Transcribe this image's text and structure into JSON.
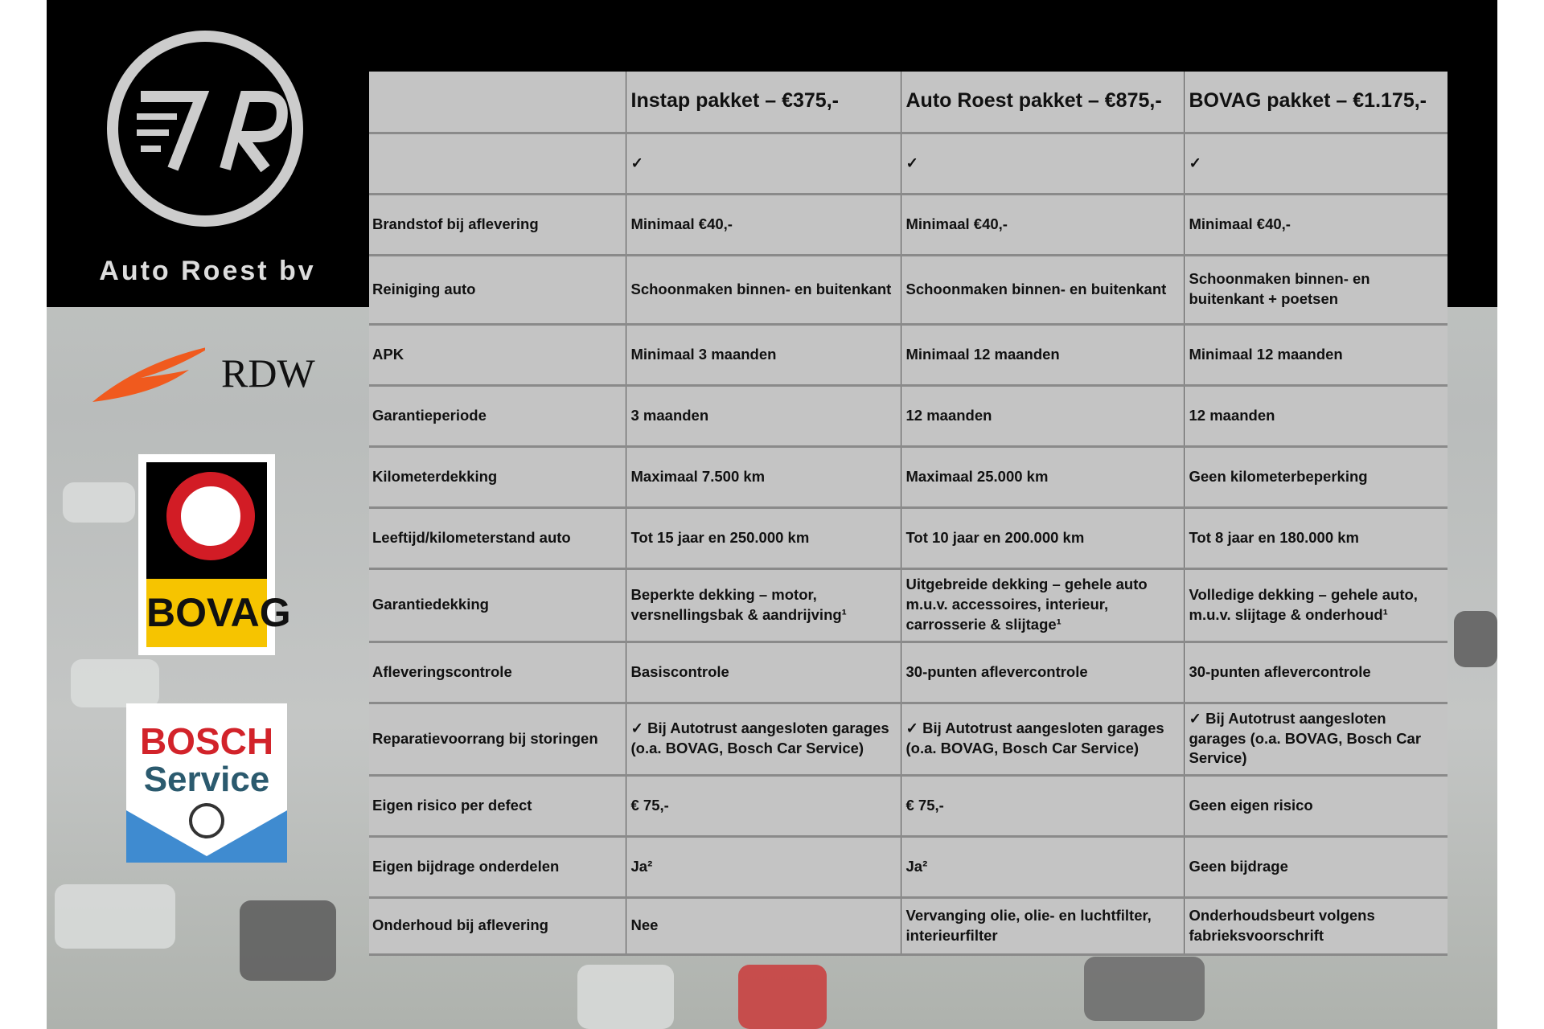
{
  "brand": {
    "name": "Auto Roest bv",
    "logo_text": "7R"
  },
  "partners": [
    {
      "name": "RDW"
    },
    {
      "name": "BOVAG"
    },
    {
      "name": "BOSCH",
      "sub": "Service"
    }
  ],
  "table": {
    "headers": [
      "",
      "Instap pakket – €375,-",
      "Auto Roest pakket – €875,-",
      "BOVAG pakket – €1.175,-"
    ],
    "rows": [
      {
        "label": "",
        "cells": [
          "✓",
          "✓",
          "✓"
        ]
      },
      {
        "label": "Brandstof bij aflevering",
        "cells": [
          "Minimaal €40,-",
          "Minimaal €40,-",
          "Minimaal €40,-"
        ]
      },
      {
        "label": "Reiniging auto",
        "cells": [
          "Schoonmaken binnen- en buitenkant",
          "Schoonmaken binnen- en buitenkant",
          "Schoonmaken binnen- en buitenkant + poetsen"
        ]
      },
      {
        "label": "APK",
        "cells": [
          "Minimaal 3 maanden",
          "Minimaal 12 maanden",
          "Minimaal 12 maanden"
        ]
      },
      {
        "label": "Garantieperiode",
        "cells": [
          "3 maanden",
          "12 maanden",
          "12 maanden"
        ]
      },
      {
        "label": "Kilometerdekking",
        "cells": [
          "Maximaal 7.500 km",
          "Maximaal 25.000 km",
          "Geen kilometerbeperking"
        ]
      },
      {
        "label": "Leeftijd/kilometerstand auto",
        "cells": [
          "Tot 15 jaar en 250.000 km",
          "Tot 10 jaar en 200.000 km",
          "Tot 8 jaar en 180.000 km"
        ]
      },
      {
        "label": "Garantiedekking",
        "cells": [
          "Beperkte dekking – motor, versnellingsbak & aandrijving¹",
          "Uitgebreide dekking – gehele auto m.u.v. accessoires, interieur, carrosserie & slijtage¹",
          "Volledige dekking – gehele auto, m.u.v. slijtage & onderhoud¹"
        ]
      },
      {
        "label": "Afleveringscontrole",
        "cells": [
          "Basiscontrole",
          "30-punten aflevercontrole",
          "30-punten aflevercontrole"
        ]
      },
      {
        "label": "Reparatievoorrang bij storingen",
        "cells": [
          "✓ Bij Autotrust aangesloten garages (o.a. BOVAG, Bosch Car Service)",
          "✓ Bij Autotrust aangesloten garages (o.a. BOVAG, Bosch Car Service)",
          "✓ Bij Autotrust aangesloten garages (o.a. BOVAG, Bosch Car Service)"
        ]
      },
      {
        "label": "Eigen risico per defect",
        "cells": [
          "€ 75,-",
          "€ 75,-",
          "Geen eigen risico"
        ]
      },
      {
        "label": "Eigen bijdrage onderdelen",
        "cells": [
          "Ja²",
          "Ja²",
          "Geen bijdrage"
        ]
      },
      {
        "label": "Onderhoud bij aflevering",
        "cells": [
          "Nee",
          "Vervanging olie, olie- en luchtfilter, interieurfilter",
          "Onderhoudsbeurt volgens fabrieksvoorschrift"
        ]
      }
    ]
  }
}
